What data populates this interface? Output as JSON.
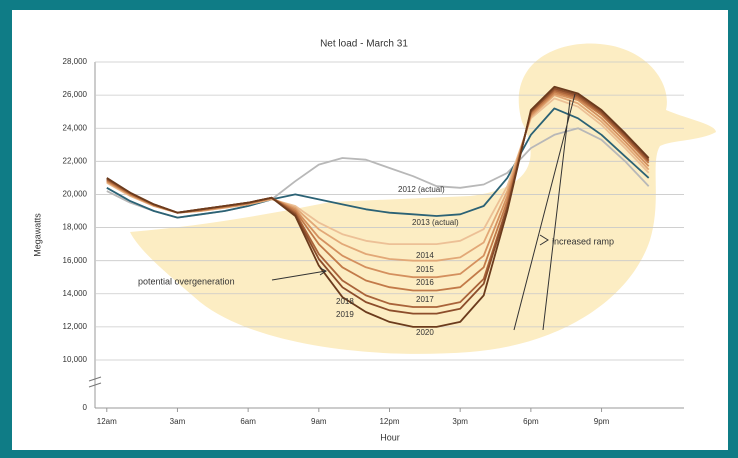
{
  "chart_data": {
    "type": "line",
    "title": "Net load - March 31",
    "y_label": "Megawatts",
    "x_label": "Hour",
    "x": [
      0,
      1,
      2,
      3,
      4,
      5,
      6,
      7,
      8,
      9,
      10,
      11,
      12,
      13,
      14,
      15,
      16,
      17,
      18,
      19,
      20,
      21,
      22,
      23
    ],
    "xlim": [
      -0.5,
      24.5
    ],
    "xticks": [
      {
        "value": 0,
        "label": "12am"
      },
      {
        "value": 3,
        "label": "3am"
      },
      {
        "value": 6,
        "label": "6am"
      },
      {
        "value": 9,
        "label": "9am"
      },
      {
        "value": 12,
        "label": "12pm"
      },
      {
        "value": 15,
        "label": "3pm"
      },
      {
        "value": 18,
        "label": "6pm"
      },
      {
        "value": 21,
        "label": "9pm"
      }
    ],
    "ylim": [
      0,
      28000
    ],
    "y_axis_break": [
      0,
      10000
    ],
    "yticks": [
      0,
      {
        "value": 10000,
        "label": "10,000"
      },
      {
        "value": 12000,
        "label": "12,000"
      },
      {
        "value": 14000,
        "label": "14,000"
      },
      {
        "value": 16000,
        "label": "16,000"
      },
      {
        "value": 18000,
        "label": "18,000"
      },
      {
        "value": 20000,
        "label": "20,000"
      },
      {
        "value": 22000,
        "label": "22,000"
      },
      {
        "value": 24000,
        "label": "24,000"
      },
      {
        "value": 26000,
        "label": "26,000"
      },
      {
        "value": 28000,
        "label": "28,000"
      }
    ],
    "grid": true,
    "series": [
      {
        "name": "2012 (actual)",
        "color": "#b8b8b8",
        "values": [
          20200,
          19500,
          19000,
          18600,
          18800,
          19000,
          19300,
          19700,
          20800,
          21800,
          22200,
          22100,
          21600,
          21100,
          20500,
          20400,
          20600,
          21300,
          22800,
          23600,
          24000,
          23300,
          22000,
          20500
        ]
      },
      {
        "name": "2013 (actual)",
        "color": "#2b6275",
        "values": [
          20400,
          19600,
          19000,
          18600,
          18800,
          19000,
          19300,
          19700,
          20000,
          19700,
          19400,
          19100,
          18900,
          18800,
          18700,
          18800,
          19300,
          21000,
          23600,
          25200,
          24600,
          23600,
          22300,
          21000
        ]
      },
      {
        "name": "2014",
        "color": "#ecc096",
        "values": [
          20700,
          19900,
          19300,
          18900,
          19000,
          19200,
          19400,
          19700,
          19300,
          18300,
          17600,
          17200,
          17000,
          17000,
          17000,
          17200,
          17900,
          20500,
          24600,
          25800,
          25300,
          24200,
          22800,
          21300
        ]
      },
      {
        "name": "2015",
        "color": "#e2a877",
        "values": [
          20750,
          19950,
          19300,
          18900,
          19000,
          19200,
          19400,
          19750,
          19200,
          17900,
          17000,
          16400,
          16100,
          16000,
          16000,
          16200,
          17100,
          20200,
          24700,
          26000,
          25500,
          24400,
          23000,
          21500
        ]
      },
      {
        "name": "2016",
        "color": "#d4905e",
        "values": [
          20800,
          20000,
          19350,
          18900,
          19050,
          19250,
          19450,
          19750,
          19100,
          17400,
          16300,
          15600,
          15200,
          15000,
          15000,
          15200,
          16300,
          19900,
          24800,
          26100,
          25700,
          24600,
          23200,
          21700
        ]
      },
      {
        "name": "2017",
        "color": "#c27a49",
        "values": [
          20850,
          20000,
          19350,
          18900,
          19050,
          19250,
          19450,
          19800,
          19000,
          17000,
          15600,
          14800,
          14400,
          14200,
          14200,
          14400,
          15600,
          19600,
          24900,
          26200,
          25800,
          24800,
          23400,
          21900
        ]
      },
      {
        "name": "2018",
        "color": "#a9633a",
        "values": [
          20900,
          20050,
          19400,
          18900,
          19100,
          19300,
          19500,
          19800,
          18900,
          16400,
          14800,
          13900,
          13400,
          13200,
          13200,
          13500,
          14900,
          19300,
          25000,
          26300,
          25900,
          24900,
          23500,
          22000
        ]
      },
      {
        "name": "2019",
        "color": "#8c4d2b",
        "values": [
          20950,
          20100,
          19400,
          18900,
          19100,
          19300,
          19500,
          19800,
          18800,
          16100,
          14400,
          13500,
          13000,
          12800,
          12800,
          13100,
          14600,
          19200,
          25000,
          26400,
          26000,
          25000,
          23600,
          22100
        ]
      },
      {
        "name": "2020",
        "color": "#6b3b1d",
        "values": [
          21000,
          20100,
          19400,
          18900,
          19100,
          19300,
          19500,
          19800,
          18700,
          15700,
          13800,
          12900,
          12300,
          12000,
          12000,
          12300,
          13900,
          19000,
          25100,
          26500,
          26100,
          25100,
          23700,
          22200
        ]
      }
    ],
    "annotations": [
      "potential overgeneration",
      "increased ramp"
    ]
  }
}
